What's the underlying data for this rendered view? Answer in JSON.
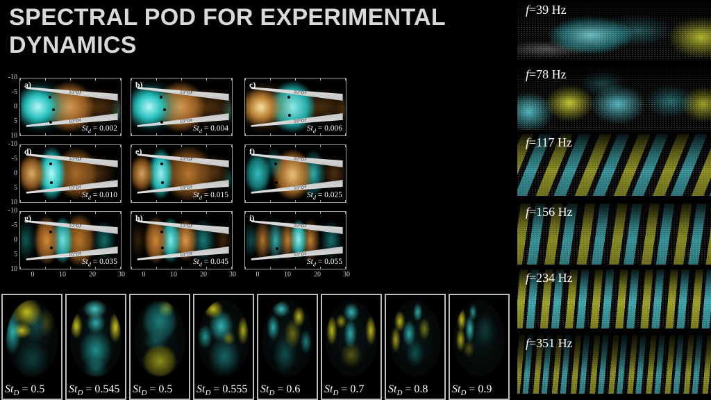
{
  "slide": {
    "title_lines": [
      "SPECTRAL POD FOR EXPERIMENTAL",
      "DYNAMICS"
    ]
  },
  "spod_grid": {
    "wedge_label": "10°DF",
    "x_ticks": [
      "0",
      "10",
      "20",
      "30"
    ],
    "y_ticks": [
      "-10",
      "-5",
      "0",
      "5",
      "10"
    ],
    "panels": [
      {
        "tag": "a)",
        "st_base": "St",
        "st_sub": "d",
        "st_rest": " = 0.002"
      },
      {
        "tag": "b)",
        "st_base": "St",
        "st_sub": "d",
        "st_rest": " = 0.004"
      },
      {
        "tag": "c)",
        "st_base": "St",
        "st_sub": "d",
        "st_rest": " = 0.006"
      },
      {
        "tag": "d)",
        "st_base": "St",
        "st_sub": "d",
        "st_rest": " = 0.010"
      },
      {
        "tag": "e)",
        "st_base": "St",
        "st_sub": "d",
        "st_rest": " = 0.015"
      },
      {
        "tag": "f)",
        "st_base": "St",
        "st_sub": "d",
        "st_rest": " = 0.025"
      },
      {
        "tag": "g)",
        "st_base": "St",
        "st_sub": "d",
        "st_rest": " = 0.035"
      },
      {
        "tag": "h)",
        "st_base": "St",
        "st_sub": "d",
        "st_rest": " = 0.045"
      },
      {
        "tag": "i)",
        "st_base": "St",
        "st_sub": "d",
        "st_rest": " = 0.055"
      }
    ]
  },
  "strouhal_row": {
    "panels": [
      {
        "st_base": "St",
        "st_sub": "D",
        "st_rest": " = 0.5"
      },
      {
        "st_base": "St",
        "st_sub": "D",
        "st_rest": " = 0.545"
      },
      {
        "st_base": "St",
        "st_sub": "D",
        "st_rest": " = 0.5"
      },
      {
        "st_base": "St",
        "st_sub": "D",
        "st_rest": " = 0.555"
      },
      {
        "st_base": "St",
        "st_sub": "D",
        "st_rest": " = 0.6"
      },
      {
        "st_base": "St",
        "st_sub": "D",
        "st_rest": " = 0.7"
      },
      {
        "st_base": "St",
        "st_sub": "D",
        "st_rest": " = 0.8"
      },
      {
        "st_base": "St",
        "st_sub": "D",
        "st_rest": " = 0.9"
      }
    ]
  },
  "frequency_column": {
    "panels": [
      {
        "label": "f=39 Hz"
      },
      {
        "label": "f=78 Hz"
      },
      {
        "label": "f=117 Hz"
      },
      {
        "label": "f=156 Hz"
      },
      {
        "label": "f=234 Hz"
      },
      {
        "label": "f=351 Hz"
      }
    ]
  },
  "colors": {
    "background": "#000000",
    "title_text": "#d9d9d9",
    "cyan": "#2bd4d0",
    "orange": "#bf7a2c",
    "yellow": "#cdd22a",
    "panel_border": "#9e9e9e",
    "label_text": "#ffffff"
  }
}
